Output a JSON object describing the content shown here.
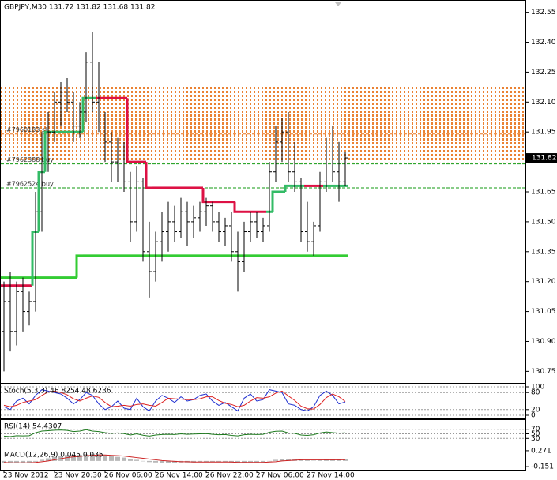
{
  "chart_data": [
    {
      "type": "ohlc",
      "title": "GBPJPY,M30  131.72 131.82 131.68 131.82",
      "categories": [
        "23 Nov 2012",
        null,
        null,
        null,
        null,
        null,
        null,
        null,
        "23 Nov 20:30",
        null,
        null,
        null,
        null,
        null,
        null,
        null,
        "26 Nov 06:00",
        null,
        null,
        null,
        null,
        null,
        null,
        null,
        "26 Nov 14:00",
        null,
        null,
        null,
        null,
        null,
        null,
        null,
        "26 Nov 22:00",
        null,
        null,
        null,
        null,
        null,
        null,
        null,
        "27 Nov 06:00",
        null,
        null,
        null,
        null,
        null,
        null,
        null,
        "27 Nov 14:00",
        null,
        null,
        null,
        null,
        null,
        null
      ],
      "open": [
        130.95,
        131.1,
        130.95,
        131.15,
        131.05,
        131.1,
        131.55,
        131.85,
        131.95,
        132.1,
        132.15,
        132.1,
        131.98,
        132.05,
        132.3,
        132.1,
        132.0,
        131.9,
        131.8,
        131.85,
        131.7,
        131.5,
        131.7,
        131.35,
        131.25,
        131.4,
        131.45,
        131.5,
        131.45,
        131.55,
        131.5,
        131.52,
        131.55,
        131.58,
        131.5,
        131.45,
        131.48,
        131.35,
        131.3,
        131.45,
        131.5,
        131.45,
        131.48,
        131.75,
        131.9,
        131.95,
        131.75,
        131.7,
        131.45,
        131.4,
        131.48,
        131.7,
        131.85,
        131.75,
        131.7
      ],
      "high": [
        131.2,
        131.25,
        131.2,
        131.22,
        131.15,
        131.65,
        131.95,
        132.05,
        132.15,
        132.2,
        132.22,
        132.15,
        132.1,
        132.35,
        132.45,
        132.3,
        132.05,
        131.95,
        131.92,
        131.9,
        131.75,
        131.78,
        131.72,
        131.5,
        131.45,
        131.55,
        131.6,
        131.58,
        131.62,
        131.6,
        131.58,
        131.6,
        131.62,
        131.6,
        131.55,
        131.52,
        131.55,
        131.45,
        131.5,
        131.55,
        131.55,
        131.52,
        131.8,
        131.98,
        132.02,
        132.05,
        131.9,
        131.72,
        131.6,
        131.5,
        131.75,
        131.92,
        131.98,
        131.9,
        131.85
      ],
      "low": [
        130.75,
        130.85,
        130.88,
        130.95,
        130.98,
        131.05,
        131.45,
        131.75,
        131.9,
        131.98,
        132.05,
        131.9,
        131.92,
        132.0,
        132.05,
        131.95,
        131.8,
        131.7,
        131.7,
        131.65,
        131.4,
        131.45,
        131.3,
        131.12,
        131.2,
        131.3,
        131.35,
        131.4,
        131.42,
        131.38,
        131.42,
        131.45,
        131.48,
        131.45,
        131.4,
        131.38,
        131.3,
        131.15,
        131.25,
        131.4,
        131.42,
        131.4,
        131.45,
        131.7,
        131.8,
        131.7,
        131.65,
        131.4,
        131.35,
        131.33,
        131.45,
        131.65,
        131.7,
        131.6,
        131.68
      ],
      "close": [
        131.1,
        130.95,
        131.15,
        131.05,
        131.1,
        131.55,
        131.85,
        131.95,
        132.1,
        132.15,
        132.1,
        131.98,
        132.05,
        132.3,
        132.1,
        132.0,
        131.9,
        131.8,
        131.85,
        131.7,
        131.5,
        131.7,
        131.35,
        131.25,
        131.4,
        131.45,
        131.5,
        131.45,
        131.55,
        131.5,
        131.52,
        131.55,
        131.58,
        131.5,
        131.45,
        131.48,
        131.35,
        131.3,
        131.45,
        131.5,
        131.45,
        131.48,
        131.75,
        131.9,
        131.95,
        131.75,
        131.7,
        131.45,
        131.4,
        131.48,
        131.7,
        131.85,
        131.75,
        131.7,
        131.82
      ],
      "color": "#000000",
      "ylim": [
        130.7,
        132.6
      ],
      "yticks": [
        132.55,
        {
          "value": 132.4,
          "label": "132.40"
        },
        132.25,
        {
          "value": 132.1,
          "label": "132.10"
        },
        131.95,
        131.65,
        {
          "value": 131.5,
          "label": "131.50"
        },
        131.35,
        {
          "value": 131.2,
          "label": "131.20"
        },
        131.05,
        {
          "value": 130.9,
          "label": "130.90"
        },
        130.75
      ],
      "zone": {
        "from": 131.8,
        "to": 132.18,
        "color": "#e8741c"
      },
      "levels": [
        {
          "label": "#7960183 sl",
          "value": 131.94,
          "color": "#e8741c"
        },
        {
          "label": "#7962388 buy",
          "value": 131.79,
          "color": "#119911"
        },
        {
          "label": "#7962524 buy",
          "value": 131.67,
          "color": "#119911"
        }
      ],
      "support": {
        "color": "#33cc33",
        "values": [
          131.22,
          131.22,
          131.22,
          131.22,
          131.22,
          131.22,
          131.22,
          131.22,
          131.22,
          131.22,
          131.22,
          131.22,
          131.33,
          131.33,
          131.33,
          131.33,
          131.33,
          131.33,
          131.33,
          131.33,
          131.33,
          131.33,
          131.33,
          131.33,
          131.33,
          131.33,
          131.33,
          131.33,
          131.33,
          131.33,
          131.33,
          131.33,
          131.33,
          131.33,
          131.33,
          131.33,
          131.33,
          131.33,
          131.33,
          131.33,
          131.33,
          131.33,
          131.33,
          131.33,
          131.33,
          131.33,
          131.33,
          131.33,
          131.33,
          131.33,
          131.33,
          131.33,
          131.33,
          131.33,
          131.33
        ]
      },
      "trend": {
        "values": [
          131.18,
          131.18,
          131.18,
          131.18,
          131.18,
          131.45,
          131.75,
          131.95,
          131.95,
          131.95,
          131.95,
          131.95,
          131.95,
          132.12,
          132.12,
          132.12,
          132.12,
          132.12,
          132.12,
          132.12,
          131.8,
          131.8,
          131.8,
          131.67,
          131.67,
          131.67,
          131.67,
          131.67,
          131.67,
          131.67,
          131.67,
          131.67,
          131.6,
          131.6,
          131.6,
          131.6,
          131.6,
          131.55,
          131.55,
          131.55,
          131.55,
          131.55,
          131.55,
          131.65,
          131.65,
          131.68,
          131.68,
          131.68,
          131.68,
          131.68,
          131.68,
          131.68,
          131.68,
          131.68,
          131.68
        ],
        "colors": [
          "#dd1144",
          "#dd1144",
          "#dd1144",
          "#dd1144",
          "#dd1144",
          "#33bb66",
          "#33bb66",
          "#33bb66",
          "#33bb66",
          "#33bb66",
          "#33bb66",
          "#33bb66",
          "#33bb66",
          "#33bb66",
          "#33bb66",
          "#dd1144",
          "#dd1144",
          "#dd1144",
          "#dd1144",
          "#dd1144",
          "#dd1144",
          "#dd1144",
          "#dd1144",
          "#dd1144",
          "#dd1144",
          "#dd1144",
          "#dd1144",
          "#dd1144",
          "#dd1144",
          "#dd1144",
          "#dd1144",
          "#dd1144",
          "#dd1144",
          "#dd1144",
          "#dd1144",
          "#dd1144",
          "#dd1144",
          "#dd1144",
          "#dd1144",
          "#dd1144",
          "#dd1144",
          "#dd1144",
          "#33bb66",
          "#33bb66",
          "#33bb66",
          "#33bb66",
          "#33bb66",
          "#33bb66",
          "#dd1144",
          "#dd1144",
          "#dd1144",
          "#33bb66",
          "#33bb66",
          "#33bb66",
          "#33bb66"
        ]
      },
      "last_price": 131.82
    },
    {
      "type": "line",
      "title": "Stoch(5,3,3) 46.8254 48.6236",
      "ylim": [
        0,
        100
      ],
      "yticks": [
        100,
        80,
        20,
        0
      ],
      "grid": true,
      "series": [
        {
          "color": "#1f2fd0",
          "values": [
            30,
            20,
            50,
            60,
            40,
            70,
            90,
            85,
            80,
            75,
            60,
            40,
            55,
            80,
            70,
            40,
            20,
            30,
            50,
            25,
            20,
            60,
            30,
            15,
            50,
            70,
            60,
            45,
            65,
            50,
            55,
            70,
            75,
            50,
            35,
            45,
            30,
            15,
            60,
            75,
            50,
            55,
            90,
            85,
            80,
            40,
            35,
            20,
            15,
            30,
            70,
            85,
            70,
            40,
            46.8254
          ]
        },
        {
          "color": "#dd2222",
          "values": [
            35,
            30,
            35,
            45,
            50,
            55,
            70,
            82,
            85,
            80,
            72,
            58,
            50,
            60,
            68,
            63,
            45,
            30,
            32,
            35,
            32,
            38,
            40,
            35,
            32,
            45,
            60,
            58,
            57,
            55,
            55,
            58,
            65,
            65,
            52,
            42,
            38,
            30,
            35,
            50,
            62,
            60,
            65,
            78,
            85,
            68,
            52,
            32,
            23,
            22,
            38,
            62,
            75,
            65,
            48.6236
          ]
        }
      ]
    },
    {
      "type": "line",
      "title": "RSI(14) 54.4307",
      "ylim": [
        0,
        100
      ],
      "yticks": [
        70,
        50,
        30
      ],
      "grid": true,
      "series": [
        {
          "color": "#1e7a1e",
          "values": [
            40,
            38,
            42,
            41,
            42,
            55,
            62,
            64,
            66,
            67,
            65,
            60,
            62,
            68,
            62,
            60,
            55,
            52,
            54,
            51,
            45,
            50,
            44,
            40,
            45,
            47,
            48,
            47,
            50,
            48,
            49,
            50,
            51,
            48,
            46,
            47,
            43,
            41,
            46,
            48,
            47,
            48,
            57,
            61,
            62,
            54,
            52,
            45,
            43,
            46,
            54,
            58,
            55,
            53,
            54.4307
          ]
        }
      ]
    },
    {
      "type": "macd",
      "title": "MACD(12,26,9) 0.045 0.035",
      "ylim": [
        -0.17,
        0.29
      ],
      "yticks": [
        0.271,
        -0.151
      ],
      "grid": false,
      "series": [
        {
          "color": "#b8b8b8",
          "style": "bar",
          "values": [
            -0.05,
            -0.06,
            -0.06,
            -0.05,
            -0.05,
            -0.02,
            0.03,
            0.07,
            0.11,
            0.14,
            0.16,
            0.16,
            0.16,
            0.18,
            0.19,
            0.18,
            0.16,
            0.13,
            0.11,
            0.09,
            0.05,
            0.03,
            0.0,
            -0.03,
            -0.04,
            -0.05,
            -0.05,
            -0.05,
            -0.04,
            -0.04,
            -0.04,
            -0.03,
            -0.03,
            -0.03,
            -0.03,
            -0.03,
            -0.04,
            -0.05,
            -0.04,
            -0.03,
            -0.03,
            -0.03,
            0.0,
            0.03,
            0.05,
            0.06,
            0.06,
            0.04,
            0.02,
            0.01,
            0.02,
            0.03,
            0.04,
            0.04,
            0.045
          ]
        },
        {
          "color": "#cc2222",
          "style": "line",
          "values": [
            -0.04,
            -0.05,
            -0.05,
            -0.05,
            -0.05,
            -0.04,
            -0.02,
            0.0,
            0.03,
            0.06,
            0.09,
            0.11,
            0.12,
            0.14,
            0.15,
            0.16,
            0.16,
            0.15,
            0.14,
            0.13,
            0.11,
            0.09,
            0.07,
            0.05,
            0.03,
            0.01,
            0.0,
            -0.01,
            -0.02,
            -0.02,
            -0.03,
            -0.03,
            -0.03,
            -0.03,
            -0.03,
            -0.03,
            -0.03,
            -0.04,
            -0.04,
            -0.04,
            -0.04,
            -0.04,
            -0.03,
            -0.02,
            0.0,
            0.01,
            0.02,
            0.03,
            0.03,
            0.03,
            0.03,
            0.03,
            0.03,
            0.03,
            0.035
          ]
        }
      ]
    }
  ]
}
